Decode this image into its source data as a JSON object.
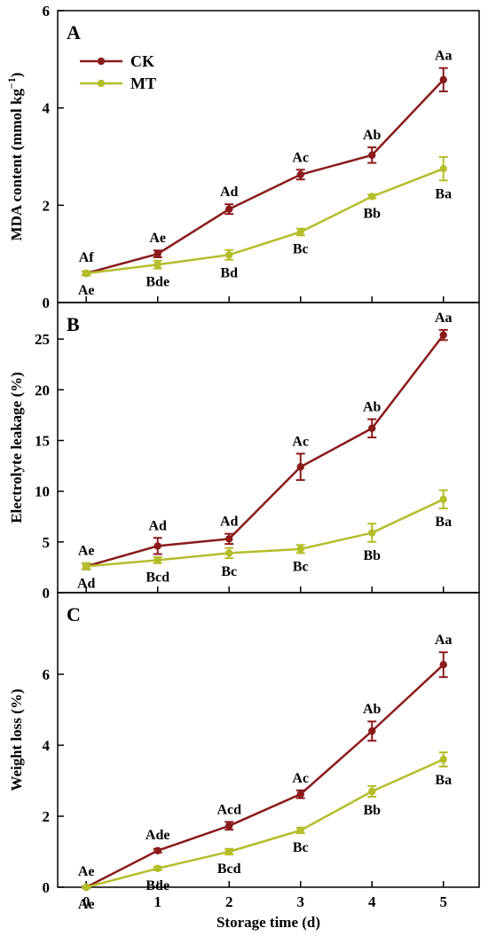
{
  "chart_data": [
    {
      "type": "line",
      "panel": "A",
      "ylabel_main": "MDA content (mmol kg",
      "ylabel_sup": "−1",
      "ylabel_close": ")",
      "ylim": [
        0,
        6
      ],
      "yticks": [
        "0",
        "2",
        "4",
        "6"
      ],
      "ytick_values": [
        0,
        2,
        4,
        6
      ],
      "x": [
        0,
        1,
        2,
        3,
        4,
        5
      ],
      "legend": {
        "position": "top-left",
        "entries": [
          "CK",
          "MT"
        ]
      },
      "series": [
        {
          "name": "CK",
          "color": "#8b1a1a",
          "values": [
            0.6,
            1.0,
            1.92,
            2.63,
            3.03,
            4.58
          ],
          "errors": [
            0.04,
            0.07,
            0.1,
            0.1,
            0.16,
            0.24
          ],
          "labels": [
            "Af",
            "Ae",
            "Ad",
            "Ac",
            "Ab",
            "Aa"
          ]
        },
        {
          "name": "MT",
          "color": "#b5bd2a",
          "values": [
            0.6,
            0.78,
            0.98,
            1.45,
            2.18,
            2.75
          ],
          "errors": [
            0.04,
            0.08,
            0.1,
            0.07,
            0.04,
            0.24
          ],
          "labels": [
            "Ae",
            "Bde",
            "Bd",
            "Bc",
            "Bb",
            "Ba"
          ]
        }
      ]
    },
    {
      "type": "line",
      "panel": "B",
      "ylabel_main": "Electrolyte leakage (%)",
      "ylim": [
        0,
        28.6
      ],
      "yticks": [
        "0",
        "5",
        "10",
        "15",
        "20",
        "25"
      ],
      "ytick_values": [
        0,
        5,
        10,
        15,
        20,
        25
      ],
      "x": [
        0,
        1,
        2,
        3,
        4,
        5
      ],
      "series": [
        {
          "name": "CK",
          "color": "#8b1a1a",
          "values": [
            2.6,
            4.6,
            5.3,
            12.4,
            16.2,
            25.4
          ],
          "errors": [
            0.3,
            0.8,
            0.5,
            1.3,
            0.9,
            0.5
          ],
          "labels": [
            "Ae",
            "Ad",
            "Ad",
            "Ac",
            "Ab",
            "Aa"
          ]
        },
        {
          "name": "MT",
          "color": "#b5bd2a",
          "values": [
            2.6,
            3.2,
            3.9,
            4.3,
            5.9,
            9.2
          ],
          "errors": [
            0.3,
            0.3,
            0.5,
            0.4,
            0.9,
            0.9
          ],
          "labels": [
            "Ad",
            "Bcd",
            "Bc",
            "Bc",
            "Bb",
            "Ba"
          ]
        }
      ]
    },
    {
      "type": "line",
      "panel": "C",
      "ylabel_main": "Weight loss (%)",
      "xlabel": "Storage time (d)",
      "ylim": [
        0,
        8.3
      ],
      "yticks": [
        "0",
        "2",
        "4",
        "6"
      ],
      "ytick_values": [
        0,
        2,
        4,
        6
      ],
      "x": [
        0,
        1,
        2,
        3,
        4,
        5
      ],
      "xticks": [
        "0",
        "1",
        "2",
        "3",
        "4",
        "5"
      ],
      "series": [
        {
          "name": "CK",
          "color": "#8b1a1a",
          "values": [
            0.0,
            1.03,
            1.73,
            2.62,
            4.4,
            6.27
          ],
          "errors": [
            0.02,
            0.05,
            0.11,
            0.11,
            0.27,
            0.35
          ],
          "labels": [
            "Ae",
            "Ade",
            "Acd",
            "Ac",
            "Ab",
            "Aa"
          ]
        },
        {
          "name": "MT",
          "color": "#b5bd2a",
          "values": [
            0.0,
            0.53,
            1.0,
            1.6,
            2.7,
            3.6
          ],
          "errors": [
            0.02,
            0.05,
            0.08,
            0.08,
            0.15,
            0.2
          ],
          "labels": [
            "Ae",
            "Bde",
            "Bcd",
            "Bc",
            "Bb",
            "Ba"
          ]
        }
      ]
    }
  ]
}
